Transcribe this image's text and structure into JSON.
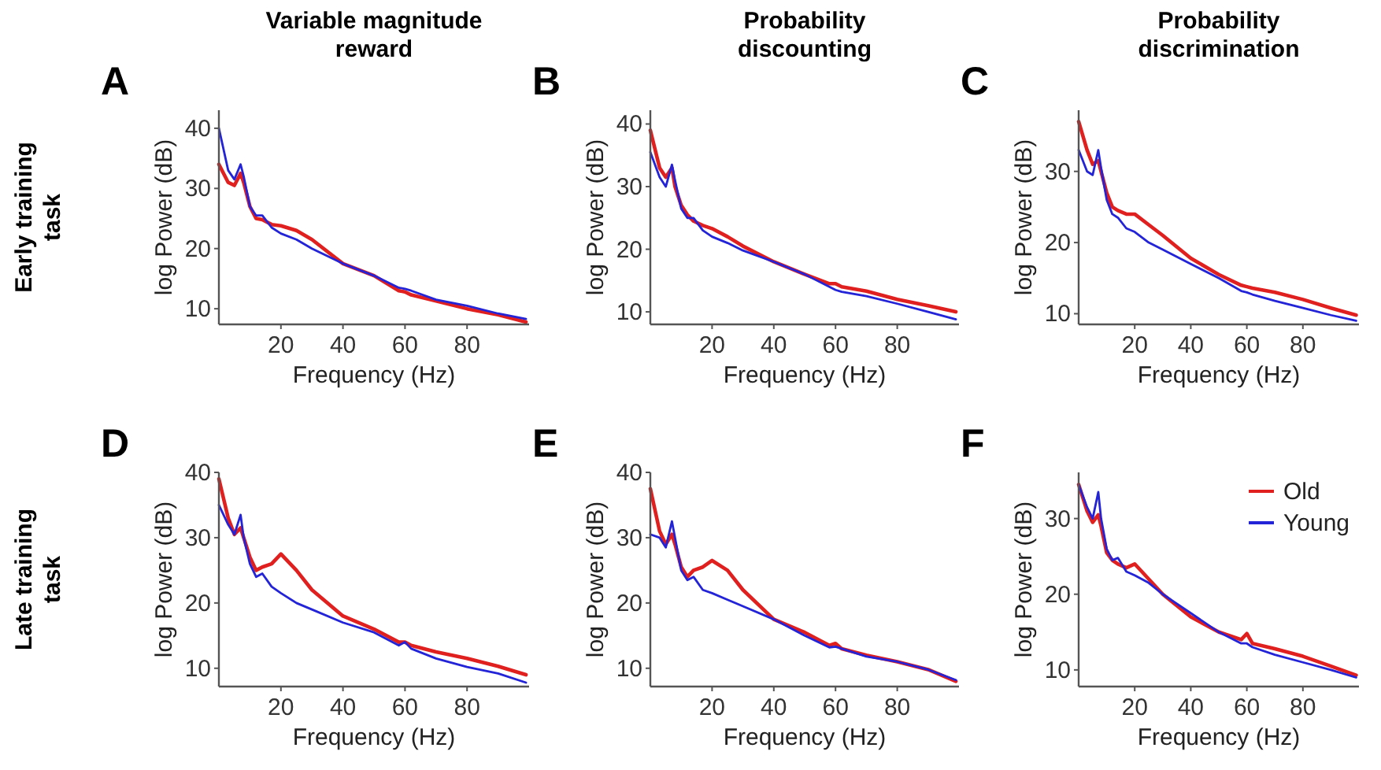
{
  "chart_data": [
    {
      "type": "line",
      "title": "Variable magnitude reward",
      "xlabel": "Frequency (Hz)",
      "ylabel": "log Power (dB)",
      "annotations": [
        "A",
        "Early training task"
      ],
      "xlim": [
        0,
        100
      ],
      "ylim": [
        7.4,
        43
      ],
      "xticks": [
        20,
        40,
        60,
        80
      ],
      "yticks": [
        10,
        20,
        30,
        40
      ],
      "grid": false,
      "legend": false,
      "x": [
        0,
        3,
        5,
        7,
        8,
        10,
        12,
        14,
        17,
        20,
        25,
        30,
        40,
        50,
        58,
        60,
        62,
        70,
        80,
        90,
        99
      ],
      "series": [
        {
          "color": "#e01f1f",
          "values": [
            34,
            31,
            30.5,
            32.5,
            31,
            27,
            25,
            24.8,
            24,
            23.8,
            23,
            21.5,
            17.5,
            15.5,
            13,
            12.8,
            12.3,
            11.3,
            10,
            9,
            7.8
          ]
        },
        {
          "color": "#2323d8",
          "values": [
            40,
            33,
            31.5,
            34,
            32,
            27,
            25.5,
            25.5,
            23.5,
            22.5,
            21.5,
            20,
            17.5,
            15.5,
            13.5,
            13.3,
            13,
            11.5,
            10.5,
            9.2,
            8.3
          ]
        }
      ]
    },
    {
      "type": "line",
      "title": "Probability discounting",
      "xlabel": "Frequency (Hz)",
      "ylabel": "log Power (dB)",
      "annotations": [
        "B"
      ],
      "xlim": [
        0,
        100
      ],
      "ylim": [
        8,
        42.2
      ],
      "xticks": [
        20,
        40,
        60,
        80
      ],
      "yticks": [
        10,
        20,
        30,
        40
      ],
      "grid": false,
      "legend": false,
      "x": [
        0,
        3,
        5,
        7,
        8,
        10,
        12,
        14,
        17,
        20,
        25,
        30,
        40,
        50,
        58,
        60,
        62,
        70,
        80,
        90,
        99
      ],
      "series": [
        {
          "color": "#e01f1f",
          "values": [
            39,
            33,
            31.5,
            33,
            30,
            27,
            25.5,
            24.5,
            23.8,
            23.3,
            22,
            20.5,
            18,
            16,
            14.5,
            14.5,
            14,
            13.3,
            12,
            11,
            10
          ]
        },
        {
          "color": "#2323d8",
          "values": [
            35.5,
            31.5,
            30,
            33.5,
            31,
            26.5,
            25,
            25,
            23,
            22,
            21,
            19.8,
            18,
            16,
            14,
            13.5,
            13.2,
            12.5,
            11.3,
            10,
            8.8
          ]
        }
      ]
    },
    {
      "type": "line",
      "title": "Probability discrimination",
      "xlabel": "Frequency (Hz)",
      "ylabel": "log Power (dB)",
      "annotations": [
        "C"
      ],
      "xlim": [
        0,
        100
      ],
      "ylim": [
        8.5,
        38.6
      ],
      "xticks": [
        20,
        40,
        60,
        80
      ],
      "yticks": [
        10,
        20,
        30
      ],
      "grid": false,
      "legend": false,
      "x": [
        0,
        3,
        5,
        7,
        8,
        10,
        12,
        14,
        17,
        20,
        25,
        30,
        40,
        50,
        58,
        60,
        62,
        70,
        80,
        90,
        99
      ],
      "series": [
        {
          "color": "#e01f1f",
          "values": [
            37,
            33,
            31,
            31.5,
            30,
            27,
            25,
            24.5,
            24,
            24,
            22.5,
            21,
            17.8,
            15.5,
            14,
            13.8,
            13.6,
            13,
            12,
            10.8,
            9.8
          ]
        },
        {
          "color": "#2323d8",
          "values": [
            33,
            30,
            29.5,
            33,
            30.5,
            26,
            24,
            23.5,
            22,
            21.5,
            20,
            19,
            17,
            15,
            13.2,
            13,
            12.7,
            11.8,
            10.8,
            9.8,
            9
          ]
        }
      ]
    },
    {
      "type": "line",
      "xlabel": "Frequency (Hz)",
      "ylabel": "log Power (dB)",
      "annotations": [
        "D",
        "Late training task"
      ],
      "xlim": [
        0,
        100
      ],
      "ylim": [
        7.2,
        40
      ],
      "xticks": [
        20,
        40,
        60,
        80
      ],
      "yticks": [
        10,
        20,
        30,
        40
      ],
      "grid": false,
      "legend": false,
      "x": [
        0,
        3,
        5,
        7,
        8,
        10,
        12,
        14,
        17,
        20,
        25,
        30,
        40,
        50,
        58,
        60,
        62,
        70,
        80,
        90,
        99
      ],
      "series": [
        {
          "color": "#e01f1f",
          "values": [
            39,
            33,
            30.5,
            31.5,
            30,
            27,
            25,
            25.5,
            26,
            27.5,
            25,
            22,
            18,
            16,
            14,
            14,
            13.5,
            12.5,
            11.5,
            10.3,
            9
          ]
        },
        {
          "color": "#2323d8",
          "values": [
            35,
            32,
            30.5,
            33.5,
            30,
            26,
            24,
            24.5,
            22.5,
            21.5,
            20,
            19,
            17,
            15.5,
            13.5,
            14,
            13,
            11.5,
            10.2,
            9.2,
            7.8
          ]
        }
      ]
    },
    {
      "type": "line",
      "xlabel": "Frequency (Hz)",
      "ylabel": "log Power (dB)",
      "annotations": [
        "E"
      ],
      "xlim": [
        0,
        100
      ],
      "ylim": [
        7.2,
        40
      ],
      "xticks": [
        20,
        40,
        60,
        80
      ],
      "yticks": [
        10,
        20,
        30,
        40
      ],
      "grid": false,
      "legend": false,
      "x": [
        0,
        3,
        5,
        7,
        8,
        10,
        12,
        14,
        17,
        20,
        25,
        30,
        40,
        50,
        58,
        60,
        62,
        70,
        80,
        90,
        99
      ],
      "series": [
        {
          "color": "#e01f1f",
          "values": [
            37.5,
            31,
            29,
            30.5,
            29,
            25.5,
            24,
            25,
            25.5,
            26.5,
            25,
            22,
            17.5,
            15.5,
            13.5,
            13.8,
            13,
            12,
            11,
            9.8,
            8
          ]
        },
        {
          "color": "#2323d8",
          "values": [
            30.5,
            30,
            28.5,
            32.5,
            30,
            25,
            23.5,
            24,
            22,
            21.5,
            20.5,
            19.5,
            17.5,
            15,
            13.2,
            13.3,
            13,
            11.8,
            11,
            9.8,
            8.2
          ]
        }
      ]
    },
    {
      "type": "line",
      "xlabel": "Frequency (Hz)",
      "ylabel": "log Power (dB)",
      "annotations": [
        "F"
      ],
      "xlim": [
        0,
        100
      ],
      "ylim": [
        7.8,
        36.1
      ],
      "xticks": [
        20,
        40,
        60,
        80
      ],
      "yticks": [
        10,
        20,
        30
      ],
      "grid": false,
      "legend": "top right",
      "x": [
        0,
        3,
        5,
        7,
        8,
        10,
        12,
        14,
        17,
        20,
        25,
        30,
        40,
        50,
        58,
        60,
        62,
        70,
        80,
        90,
        99
      ],
      "series": [
        {
          "name": "Old",
          "color": "#e01f1f",
          "values": [
            34.5,
            31,
            29.5,
            30.5,
            29,
            25.5,
            24.5,
            24,
            23.5,
            24,
            22,
            20,
            17,
            15,
            14,
            14.8,
            13.5,
            12.8,
            11.8,
            10.5,
            9.3
          ]
        },
        {
          "name": "Young",
          "color": "#2323d8",
          "values": [
            34.5,
            31.5,
            30,
            33.5,
            30,
            26,
            24.5,
            24.8,
            23,
            22.5,
            21.5,
            20,
            17.5,
            15,
            13.5,
            13.5,
            13,
            12,
            11,
            10,
            9
          ]
        }
      ]
    }
  ]
}
